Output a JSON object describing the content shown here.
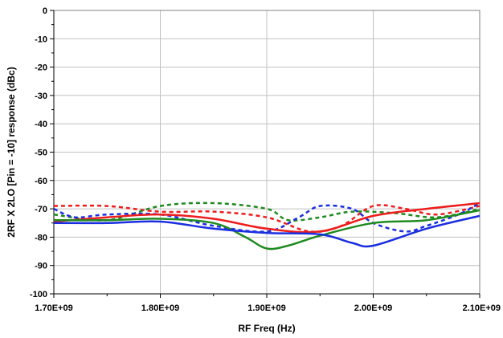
{
  "chart_data": {
    "type": "line",
    "title": "",
    "xlabel": "RF Freq (Hz)",
    "ylabel": "2RF X 2LO [Pin = -10] response (dBc)",
    "xlim": [
      1700000000,
      2100000000
    ],
    "ylim": [
      -100,
      0
    ],
    "x_ticks": [
      1700000000,
      1800000000,
      1900000000,
      2000000000,
      2100000000
    ],
    "x_tick_labels": [
      "1.70E+09",
      "1.80E+09",
      "1.90E+09",
      "2.00E+09",
      "2.10E+09"
    ],
    "y_ticks": [
      0,
      -10,
      -20,
      -30,
      -40,
      -50,
      -60,
      -70,
      -80,
      -90,
      -100
    ],
    "y_tick_labels": [
      "0",
      "-10",
      "-20",
      "-30",
      "-40",
      "-50",
      "-60",
      "-70",
      "-80",
      "-90",
      "-100"
    ],
    "grid": true,
    "legend": "none",
    "series": [
      {
        "color": "#ee1c1c",
        "style": "solid",
        "x": [
          1700000000,
          1750000000,
          1800000000,
          1850000000,
          1900000000,
          1950000000,
          2000000000,
          2050000000,
          2100000000
        ],
        "y": [
          -74.5,
          -73,
          -72,
          -73.5,
          -77,
          -78,
          -72.5,
          -70,
          -68
        ]
      },
      {
        "color": "#1f8a1f",
        "style": "solid",
        "x": [
          1700000000,
          1750000000,
          1800000000,
          1850000000,
          1880000000,
          1900000000,
          1920000000,
          1950000000,
          2000000000,
          2050000000,
          2100000000
        ],
        "y": [
          -74,
          -74,
          -73.5,
          -75,
          -80,
          -84,
          -83,
          -79.5,
          -75,
          -74,
          -70.5
        ]
      },
      {
        "color": "#1a2ee0",
        "style": "solid",
        "x": [
          1700000000,
          1750000000,
          1800000000,
          1850000000,
          1900000000,
          1950000000,
          1980000000,
          2000000000,
          2050000000,
          2100000000
        ],
        "y": [
          -75,
          -75,
          -74.5,
          -77,
          -78.5,
          -79,
          -82,
          -83,
          -77,
          -72.5
        ]
      },
      {
        "color": "#ee1c1c",
        "style": "dashed",
        "x": [
          1700000000,
          1750000000,
          1800000000,
          1850000000,
          1900000000,
          1940000000,
          1970000000,
          2000000000,
          2030000000,
          2060000000,
          2100000000
        ],
        "y": [
          -69,
          -69,
          -71,
          -71,
          -73,
          -78,
          -76,
          -69,
          -70,
          -72,
          -69
        ]
      },
      {
        "color": "#1f8a1f",
        "style": "dashed",
        "x": [
          1700000000,
          1750000000,
          1800000000,
          1850000000,
          1900000000,
          1920000000,
          1950000000,
          1980000000,
          2020000000,
          2060000000,
          2100000000
        ],
        "y": [
          -72,
          -74,
          -69,
          -68,
          -70,
          -74,
          -73,
          -71,
          -71.5,
          -73,
          -70
        ]
      },
      {
        "color": "#1a2ee0",
        "style": "dashed",
        "x": [
          1700000000,
          1720000000,
          1750000000,
          1800000000,
          1850000000,
          1900000000,
          1930000000,
          1950000000,
          1980000000,
          2000000000,
          2030000000,
          2050000000,
          2080000000,
          2100000000
        ],
        "y": [
          -70,
          -73,
          -72,
          -72,
          -76,
          -78,
          -73,
          -69,
          -70,
          -75,
          -78,
          -76,
          -72,
          -68
        ]
      }
    ]
  }
}
